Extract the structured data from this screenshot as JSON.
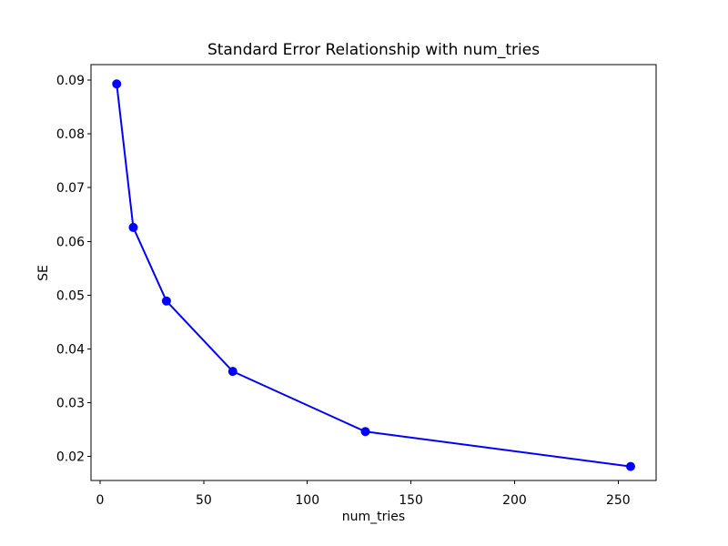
{
  "figure": {
    "background": "#ffffff"
  },
  "chart_data": {
    "type": "line",
    "title": "Standard Error Relationship with num_tries",
    "xlabel": "num_tries",
    "ylabel": "SE",
    "x": [
      8,
      16,
      32,
      64,
      128,
      256
    ],
    "y": [
      0.0893,
      0.0626,
      0.0489,
      0.0358,
      0.0246,
      0.0181
    ],
    "series": [
      {
        "name": "SE",
        "x": [
          8,
          16,
          32,
          64,
          128,
          256
        ],
        "values": [
          0.0893,
          0.0626,
          0.0489,
          0.0358,
          0.0246,
          0.0181
        ]
      }
    ],
    "xticks": [
      0,
      50,
      100,
      150,
      200,
      250
    ],
    "yticks": [
      0.02,
      0.03,
      0.04,
      0.05,
      0.06,
      0.07,
      0.08,
      0.09
    ],
    "xlim": [
      -4.4,
      268.3
    ],
    "ylim": [
      0.0155,
      0.0929
    ],
    "grid": false,
    "legend": false,
    "line_color": "#0000ff",
    "marker": "circle",
    "axis_color": "#000000",
    "text_color": "#000000"
  }
}
